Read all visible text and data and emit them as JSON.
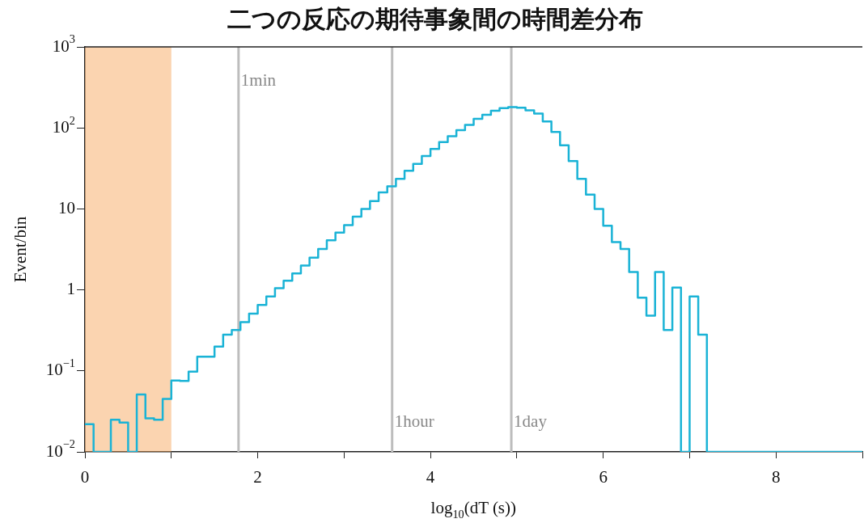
{
  "chart_data": {
    "type": "histogram",
    "title": "二つの反応の期待事象間の時間差分布",
    "xlabel": "log$_{10}$(dT (s))",
    "ylabel": "Event/bin",
    "log": "y",
    "color": "#1ab3d6",
    "bins": [
      0,
      0.1,
      0.2,
      0.3,
      0.4,
      0.5,
      0.6,
      0.7,
      0.8,
      0.9,
      1,
      1.1,
      1.2,
      1.3,
      1.4,
      1.5,
      1.6,
      1.7,
      1.8,
      1.9,
      2,
      2.1,
      2.2,
      2.3,
      2.4,
      2.5,
      2.6,
      2.7,
      2.8,
      2.9,
      3,
      3.1,
      3.2,
      3.3,
      3.4,
      3.5,
      3.6,
      3.7,
      3.8,
      3.9,
      4,
      4.1,
      4.2,
      4.3,
      4.4,
      4.5,
      4.6,
      4.7,
      4.8,
      4.9,
      5,
      5.1,
      5.2,
      5.3,
      5.4,
      5.5,
      5.6,
      5.7,
      5.8,
      5.9,
      6,
      6.1,
      6.2,
      6.3,
      6.4,
      6.5,
      6.6,
      6.7,
      6.8,
      6.9,
      7,
      7.1,
      7.2,
      7.3,
      7.4,
      7.5,
      7.6,
      7.7,
      7.8,
      7.9,
      8,
      8.1,
      8.2,
      8.3,
      8.4,
      8.5,
      8.6,
      8.7,
      8.8,
      8.9,
      9
    ],
    "values": [
      0.022,
      0.01,
      0.01,
      0.025,
      0.023,
      0.01,
      0.051,
      0.026,
      0.025,
      0.045,
      0.076,
      0.075,
      0.098,
      0.15,
      0.15,
      0.2,
      0.28,
      0.32,
      0.4,
      0.51,
      0.65,
      0.83,
      1.05,
      1.3,
      1.6,
      2.0,
      2.5,
      3.2,
      4.1,
      5.1,
      6.3,
      8.0,
      10,
      12.5,
      16,
      19,
      23.5,
      29.5,
      36,
      45,
      55,
      67,
      79,
      94,
      109,
      129,
      145,
      163,
      175,
      180,
      177,
      165,
      150,
      120,
      89,
      61,
      39,
      23.5,
      15,
      10,
      6.2,
      3.9,
      3.2,
      1.66,
      0.8,
      0.48,
      1.66,
      0.32,
      1.07,
      0.01,
      0.83,
      0.28,
      0.01,
      0.01,
      0.01,
      0.01,
      0.01,
      0.01,
      0.01,
      0.01,
      0.01,
      0.01,
      0.01,
      0.01,
      0.01,
      0.01,
      0.01,
      0.01,
      0.01,
      0.01
    ],
    "xlim": [
      0,
      9
    ],
    "xticks": [
      0,
      {
        "value": 1,
        "label": null
      },
      2,
      {
        "value": 3,
        "label": null
      },
      4,
      {
        "value": 5,
        "label": null
      },
      6,
      {
        "value": 7,
        "label": null
      },
      8,
      {
        "value": 9,
        "label": null
      }
    ],
    "ylim": [
      0.01,
      1000
    ],
    "yticks": [
      {
        "value": 0.01,
        "label": "10$^{−2}$"
      },
      {
        "value": 0.1,
        "label": "10$^{−1}$"
      },
      1,
      10,
      {
        "value": 100,
        "label": "10$^{2}$"
      },
      {
        "value": 1000,
        "label": "10$^{3}$"
      }
    ],
    "bands": [
      {
        "axis": "x",
        "from": 0,
        "to": 1,
        "color": "#f7a050"
      }
    ],
    "ref_lines": [
      {
        "axis": "x",
        "value": 1.778,
        "label": "1min",
        "color": "#bdbdbd"
      },
      {
        "axis": "x",
        "value": 3.556,
        "label": "1hour",
        "color": "#bdbdbd"
      },
      {
        "axis": "x",
        "value": 4.936,
        "label": "1day",
        "color": "#bdbdbd"
      }
    ]
  }
}
